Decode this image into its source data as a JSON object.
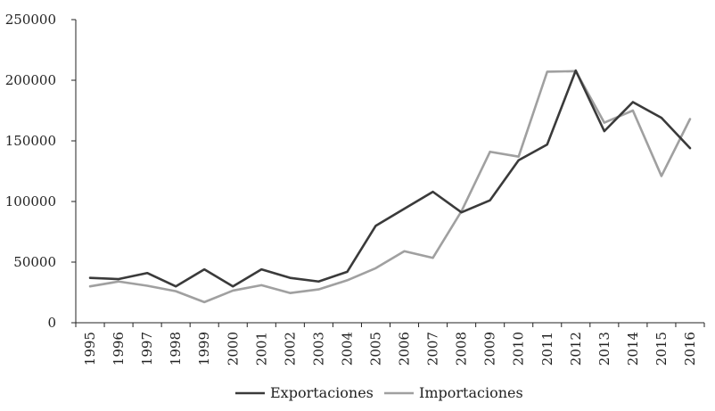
{
  "chart_data": {
    "type": "line",
    "title": "",
    "xlabel": "",
    "ylabel": "",
    "x": [
      "1995",
      "1996",
      "1997",
      "1998",
      "1999",
      "2000",
      "2001",
      "2002",
      "2003",
      "2004",
      "2005",
      "2006",
      "2007",
      "2008",
      "2009",
      "2010",
      "2011",
      "2012",
      "2013",
      "2014",
      "2015",
      "2016"
    ],
    "ylim": [
      0,
      250000
    ],
    "yticks": [
      "0",
      "50000",
      "100000",
      "150000",
      "200000",
      "250000"
    ],
    "grid": false,
    "legend_position": "bottom",
    "series": [
      {
        "name": "Exportaciones",
        "color": "#3a3a3a",
        "values": [
          37000,
          36000,
          41000,
          30000,
          44000,
          30000,
          44000,
          37000,
          34000,
          42000,
          80000,
          94000,
          108000,
          91000,
          101000,
          134000,
          147000,
          208000,
          158000,
          182000,
          169000,
          144000
        ]
      },
      {
        "name": "Importaciones",
        "color": "#a0a0a0",
        "values": [
          30000,
          34000,
          30500,
          26000,
          17000,
          26500,
          31000,
          24500,
          27500,
          35000,
          45000,
          59000,
          53500,
          92000,
          141000,
          137000,
          207000,
          207500,
          165000,
          175000,
          121000,
          168000
        ]
      }
    ]
  }
}
